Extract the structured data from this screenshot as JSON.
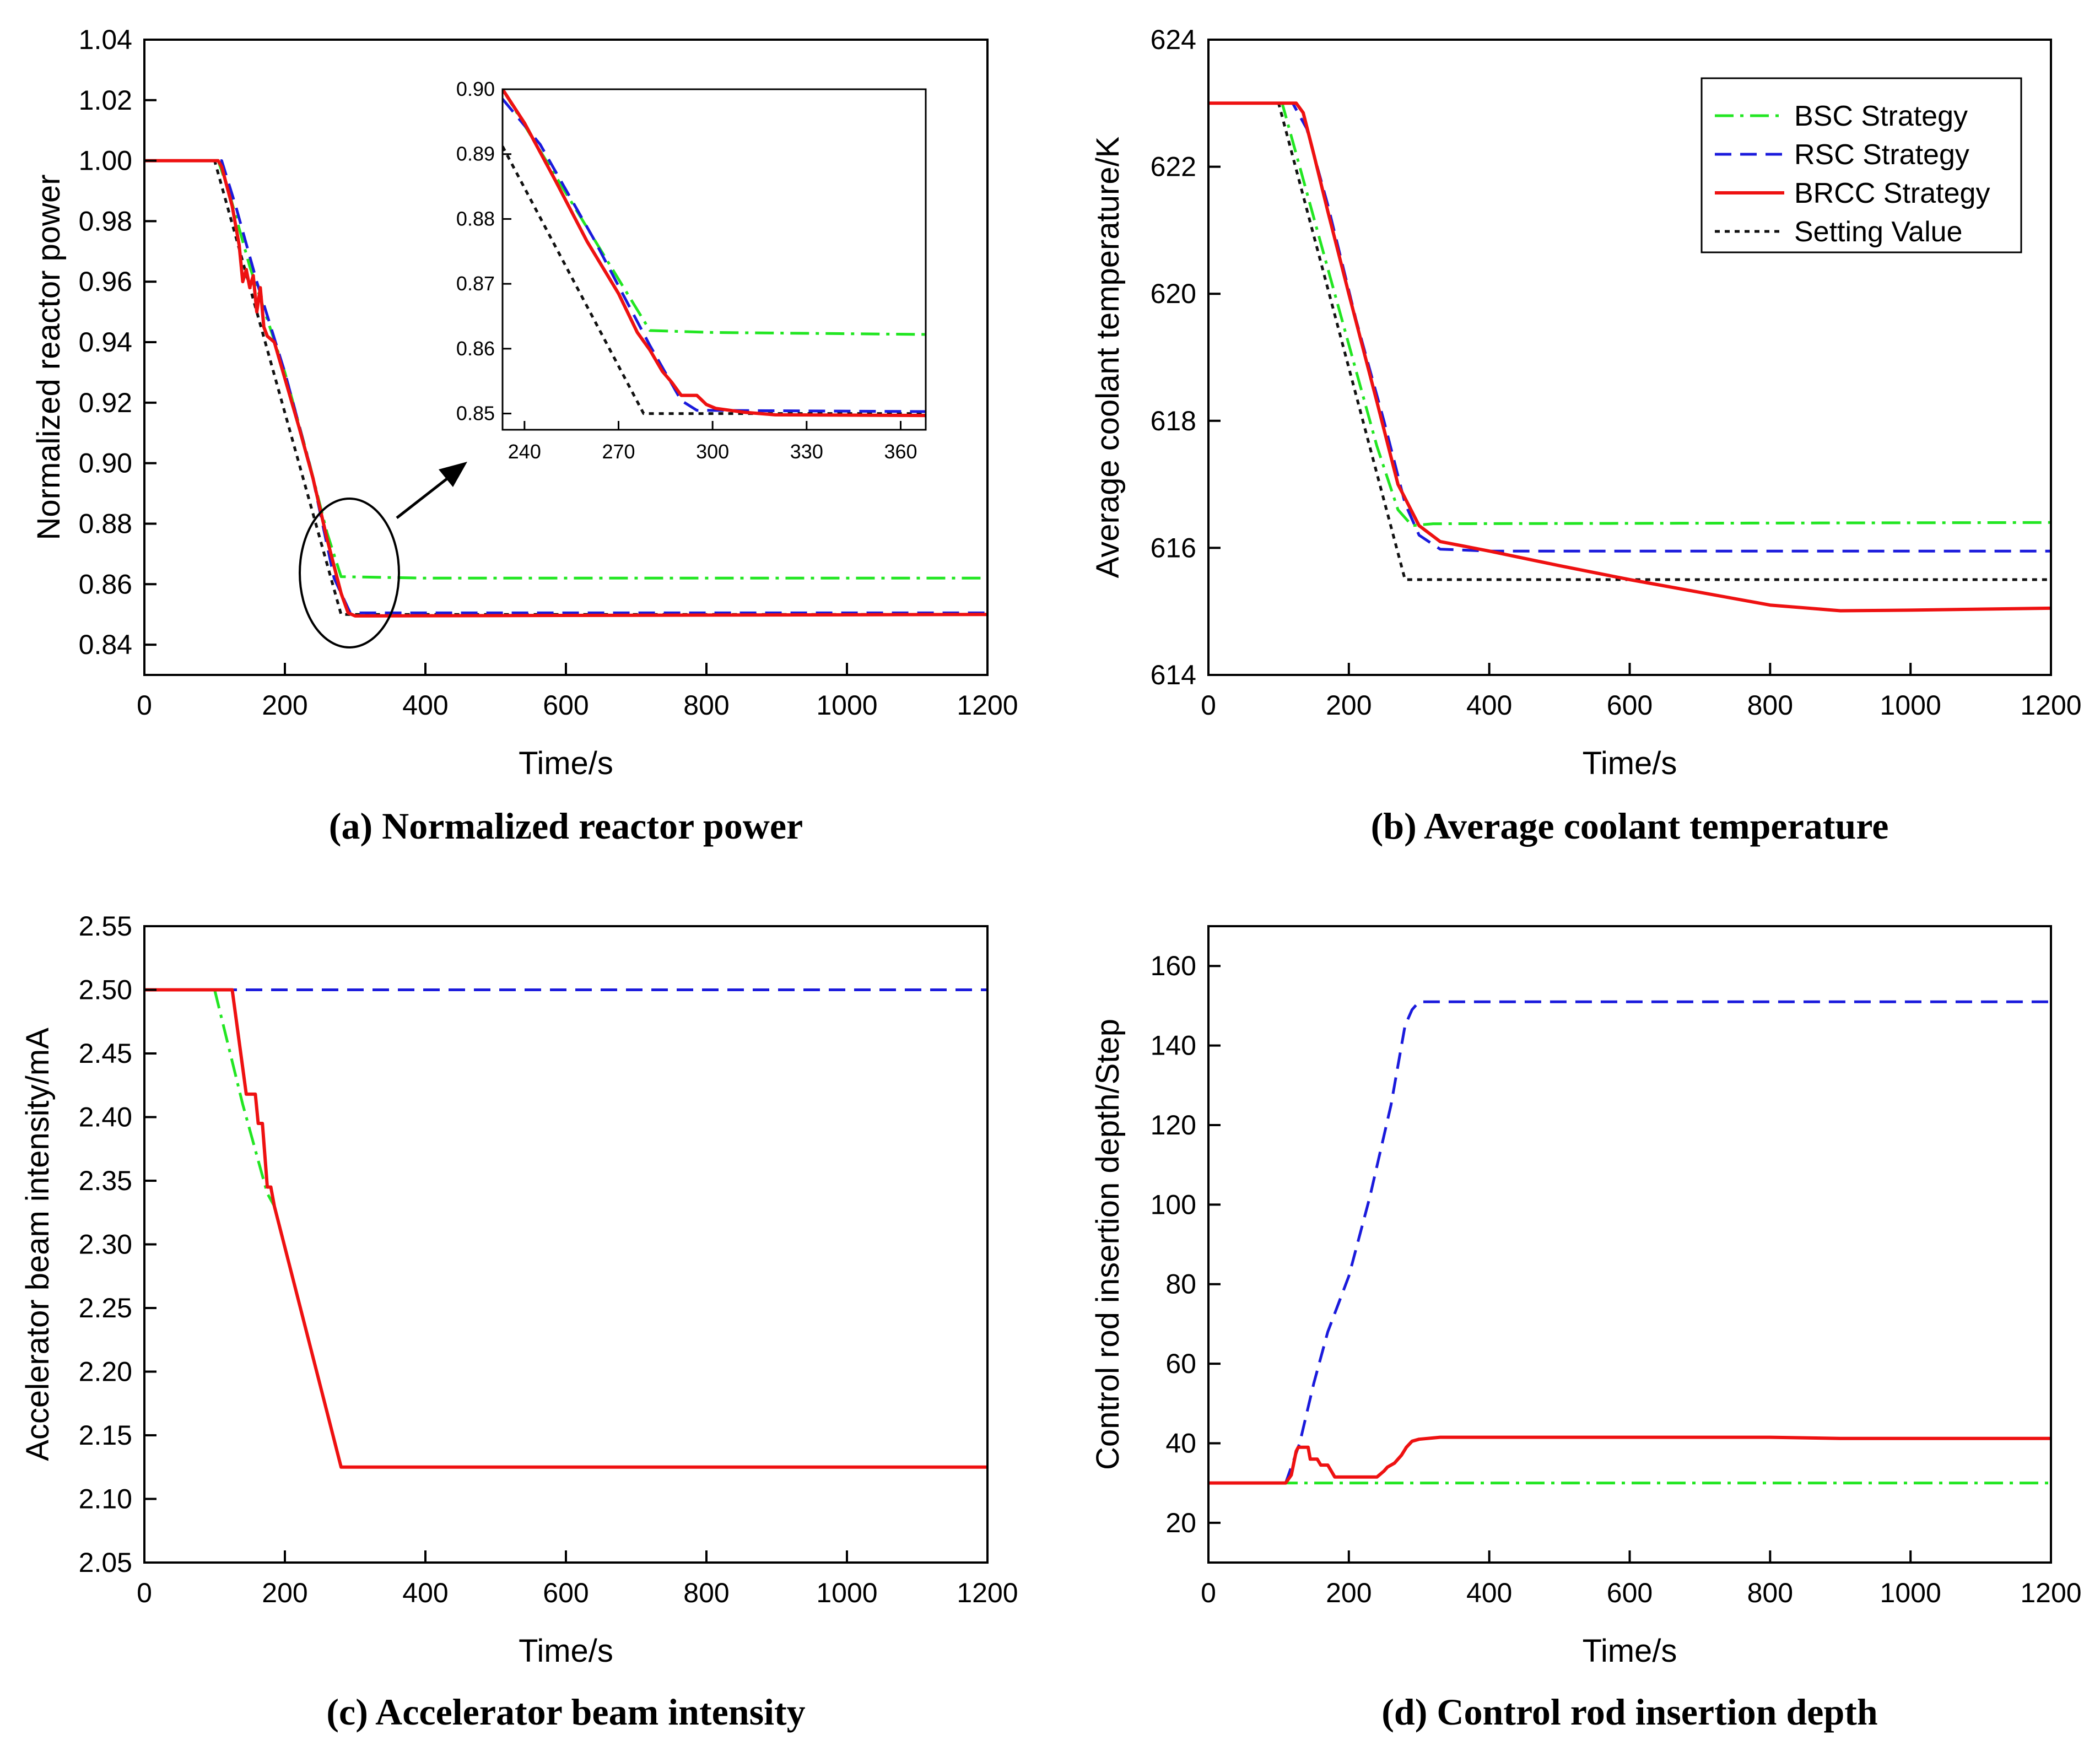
{
  "colors": {
    "BSC": "#22e622",
    "RSC": "#1a1adc",
    "BRCC": "#ee1111",
    "Setting": "#111111"
  },
  "legend": [
    {
      "key": "BSC",
      "label": "BSC Strategy",
      "dash": "dashdot"
    },
    {
      "key": "RSC",
      "label": "RSC Strategy",
      "dash": "dash"
    },
    {
      "key": "BRCC",
      "label": "BRCC Strategy",
      "dash": "solid"
    },
    {
      "key": "Setting",
      "label": "Setting Value",
      "dash": "dot"
    }
  ],
  "chart_data": [
    {
      "id": "a",
      "type": "line",
      "caption": "(a) Normalized reactor power",
      "xlabel": "Time/s",
      "ylabel": "Normalized reactor power",
      "xlim": [
        0,
        1200
      ],
      "ylim": [
        0.83,
        1.04
      ],
      "xticks": [
        0,
        200,
        400,
        600,
        800,
        1000,
        1200
      ],
      "xtick_labels": [
        "0",
        "200",
        "400",
        "600",
        "800",
        "1000",
        "1200"
      ],
      "yticks": [
        0.84,
        0.86,
        0.88,
        0.9,
        0.92,
        0.94,
        0.96,
        0.98,
        1.0,
        1.02,
        1.04
      ],
      "ytick_labels": [
        "0.84",
        "0.86",
        "0.88",
        "0.90",
        "0.92",
        "0.94",
        "0.96",
        "0.98",
        "1.00",
        "1.02",
        "1.04"
      ],
      "series": [
        {
          "key": "Setting",
          "name": "Setting Value",
          "points": [
            [
              0,
              1.0
            ],
            [
              100,
              1.0
            ],
            [
              280,
              0.85
            ],
            [
              1200,
              0.85
            ]
          ]
        },
        {
          "key": "BSC",
          "name": "BSC Strategy",
          "points": [
            [
              0,
              1.0
            ],
            [
              105,
              1.0
            ],
            [
              120,
              0.99
            ],
            [
              150,
              0.965
            ],
            [
              200,
              0.93
            ],
            [
              235,
              0.9
            ],
            [
              260,
              0.877
            ],
            [
              280,
              0.8625
            ],
            [
              400,
              0.862
            ],
            [
              1200,
              0.862
            ]
          ]
        },
        {
          "key": "RSC",
          "name": "RSC Strategy",
          "points": [
            [
              0,
              1.0
            ],
            [
              110,
              1.0
            ],
            [
              130,
              0.985
            ],
            [
              160,
              0.96
            ],
            [
              200,
              0.93
            ],
            [
              237,
              0.898
            ],
            [
              270,
              0.862
            ],
            [
              293,
              0.8505
            ],
            [
              1200,
              0.8505
            ]
          ]
        },
        {
          "key": "BRCC",
          "name": "BRCC Strategy",
          "points": [
            [
              0,
              1.0
            ],
            [
              105,
              1.0
            ],
            [
              110,
              0.998
            ],
            [
              125,
              0.985
            ],
            [
              135,
              0.972
            ],
            [
              140,
              0.96
            ],
            [
              145,
              0.964
            ],
            [
              150,
              0.958
            ],
            [
              155,
              0.962
            ],
            [
              160,
              0.95
            ],
            [
              165,
              0.958
            ],
            [
              170,
              0.945
            ],
            [
              175,
              0.942
            ],
            [
              185,
              0.94
            ],
            [
              200,
              0.928
            ],
            [
              220,
              0.912
            ],
            [
              240,
              0.895
            ],
            [
              260,
              0.875
            ],
            [
              280,
              0.857
            ],
            [
              290,
              0.8505
            ],
            [
              300,
              0.8495
            ],
            [
              1200,
              0.85
            ]
          ]
        }
      ],
      "inset": {
        "xlim": [
          233,
          368
        ],
        "ylim": [
          0.8475,
          0.9
        ],
        "xticks": [
          240,
          270,
          300,
          330,
          360
        ],
        "xtick_labels": [
          "240",
          "270",
          "300",
          "330",
          "360"
        ],
        "yticks": [
          0.85,
          0.86,
          0.87,
          0.88,
          0.89,
          0.9
        ],
        "ytick_labels": [
          "0.85",
          "0.86",
          "0.87",
          "0.88",
          "0.89",
          "0.90"
        ],
        "series": [
          {
            "key": "Setting",
            "points": [
              [
                233,
                0.8912
              ],
              [
                278,
                0.85
              ],
              [
                368,
                0.85
              ]
            ]
          },
          {
            "key": "BSC",
            "points": [
              [
                233,
                0.9
              ],
              [
                280,
                0.8628
              ],
              [
                300,
                0.8625
              ],
              [
                368,
                0.8622
              ]
            ]
          },
          {
            "key": "RSC",
            "points": [
              [
                233,
                0.8985
              ],
              [
                245,
                0.8915
              ],
              [
                262,
                0.877
              ],
              [
                280,
                0.8605
              ],
              [
                290,
                0.852
              ],
              [
                295,
                0.8505
              ],
              [
                368,
                0.8503
              ]
            ]
          },
          {
            "key": "BRCC",
            "points": [
              [
                233,
                0.9
              ],
              [
                240,
                0.8948
              ],
              [
                250,
                0.8858
              ],
              [
                260,
                0.8765
              ],
              [
                270,
                0.8685
              ],
              [
                276,
                0.8625
              ],
              [
                280,
                0.8598
              ],
              [
                284,
                0.8565
              ],
              [
                287,
                0.8548
              ],
              [
                290,
                0.8528
              ],
              [
                295,
                0.8528
              ],
              [
                298,
                0.8514
              ],
              [
                301,
                0.8508
              ],
              [
                310,
                0.8502
              ],
              [
                320,
                0.8498
              ],
              [
                368,
                0.8497
              ]
            ]
          }
        ]
      }
    },
    {
      "id": "b",
      "type": "line",
      "caption": "(b) Average coolant temperature",
      "xlabel": "Time/s",
      "ylabel": "Average coolant temperature/K",
      "xlim": [
        0,
        1200
      ],
      "ylim": [
        614,
        624
      ],
      "xticks": [
        0,
        200,
        400,
        600,
        800,
        1000,
        1200
      ],
      "xtick_labels": [
        "0",
        "200",
        "400",
        "600",
        "800",
        "1000",
        "1200"
      ],
      "yticks": [
        614,
        616,
        618,
        620,
        622,
        624
      ],
      "ytick_labels": [
        "614",
        "616",
        "618",
        "620",
        "622",
        "624"
      ],
      "series": [
        {
          "key": "Setting",
          "name": "Setting Value",
          "points": [
            [
              0,
              623.0
            ],
            [
              100,
              623.0
            ],
            [
              280,
              615.5
            ],
            [
              1200,
              615.5
            ]
          ]
        },
        {
          "key": "BSC",
          "name": "BSC Strategy",
          "points": [
            [
              0,
              623.0
            ],
            [
              105,
              623.0
            ],
            [
              125,
              622.2
            ],
            [
              165,
              620.6
            ],
            [
              200,
              619.2
            ],
            [
              240,
              617.6
            ],
            [
              270,
              616.6
            ],
            [
              290,
              616.35
            ],
            [
              320,
              616.38
            ],
            [
              1200,
              616.4
            ]
          ]
        },
        {
          "key": "RSC",
          "name": "RSC Strategy",
          "points": [
            [
              0,
              623.0
            ],
            [
              120,
              623.0
            ],
            [
              140,
              622.6
            ],
            [
              170,
              621.4
            ],
            [
              210,
              619.6
            ],
            [
              250,
              618.0
            ],
            [
              280,
              616.7
            ],
            [
              300,
              616.2
            ],
            [
              330,
              615.98
            ],
            [
              400,
              615.95
            ],
            [
              1200,
              615.95
            ]
          ]
        },
        {
          "key": "BRCC",
          "name": "BRCC Strategy",
          "points": [
            [
              0,
              623.0
            ],
            [
              110,
              623.0
            ],
            [
              125,
              623.0
            ],
            [
              135,
              622.85
            ],
            [
              150,
              622.2
            ],
            [
              170,
              621.3
            ],
            [
              200,
              620.0
            ],
            [
              240,
              618.3
            ],
            [
              270,
              617.0
            ],
            [
              300,
              616.35
            ],
            [
              330,
              616.1
            ],
            [
              400,
              615.95
            ],
            [
              500,
              615.72
            ],
            [
              600,
              615.5
            ],
            [
              700,
              615.3
            ],
            [
              800,
              615.1
            ],
            [
              900,
              615.01
            ],
            [
              1000,
              615.02
            ],
            [
              1200,
              615.05
            ]
          ]
        }
      ]
    },
    {
      "id": "c",
      "type": "line",
      "caption": "(c) Accelerator beam intensity",
      "xlabel": "Time/s",
      "ylabel": "Accelerator beam intensity/mA",
      "xlim": [
        0,
        1200
      ],
      "ylim": [
        2.05,
        2.55
      ],
      "xticks": [
        0,
        200,
        400,
        600,
        800,
        1000,
        1200
      ],
      "xtick_labels": [
        "0",
        "200",
        "400",
        "600",
        "800",
        "1000",
        "1200"
      ],
      "yticks": [
        2.05,
        2.1,
        2.15,
        2.2,
        2.25,
        2.3,
        2.35,
        2.4,
        2.45,
        2.5,
        2.55
      ],
      "ytick_labels": [
        "2.05",
        "2.10",
        "2.15",
        "2.20",
        "2.25",
        "2.30",
        "2.35",
        "2.40",
        "2.45",
        "2.50",
        "2.55"
      ],
      "series": [
        {
          "key": "RSC",
          "name": "RSC Strategy",
          "points": [
            [
              0,
              2.5
            ],
            [
              1200,
              2.5
            ]
          ]
        },
        {
          "key": "BSC",
          "name": "BSC Strategy",
          "points": [
            [
              0,
              2.5
            ],
            [
              100,
              2.5
            ],
            [
              140,
              2.41
            ],
            [
              175,
              2.34
            ],
            [
              185,
              2.33
            ],
            [
              280,
              2.125
            ],
            [
              1200,
              2.125
            ]
          ]
        },
        {
          "key": "BRCC",
          "name": "BRCC Strategy",
          "points": [
            [
              0,
              2.5
            ],
            [
              125,
              2.5
            ],
            [
              145,
              2.418
            ],
            [
              158,
              2.418
            ],
            [
              162,
              2.395
            ],
            [
              168,
              2.395
            ],
            [
              175,
              2.345
            ],
            [
              180,
              2.345
            ],
            [
              185,
              2.33
            ],
            [
              280,
              2.125
            ],
            [
              1200,
              2.125
            ]
          ]
        }
      ]
    },
    {
      "id": "d",
      "type": "line",
      "caption": "(d) Control rod insertion depth",
      "xlabel": "Time/s",
      "ylabel": "Control rod insertion depth/Step",
      "xlim": [
        0,
        1200
      ],
      "ylim": [
        10,
        170
      ],
      "xticks": [
        0,
        200,
        400,
        600,
        800,
        1000,
        1200
      ],
      "xtick_labels": [
        "0",
        "200",
        "400",
        "600",
        "800",
        "1000",
        "1200"
      ],
      "yticks": [
        20,
        40,
        60,
        80,
        100,
        120,
        140,
        160
      ],
      "ytick_labels": [
        "20",
        "40",
        "60",
        "80",
        "100",
        "120",
        "140",
        "160"
      ],
      "series": [
        {
          "key": "BSC",
          "name": "BSC Strategy",
          "points": [
            [
              0,
              30
            ],
            [
              1200,
              30
            ]
          ]
        },
        {
          "key": "RSC",
          "name": "RSC Strategy",
          "points": [
            [
              0,
              30
            ],
            [
              110,
              30
            ],
            [
              130,
              40
            ],
            [
              150,
              55
            ],
            [
              170,
              68
            ],
            [
              200,
              82
            ],
            [
              230,
              102
            ],
            [
              260,
              125
            ],
            [
              280,
              145
            ],
            [
              290,
              149
            ],
            [
              300,
              151
            ],
            [
              1200,
              151
            ]
          ]
        },
        {
          "key": "BRCC",
          "name": "BRCC Strategy",
          "points": [
            [
              0,
              30
            ],
            [
              110,
              30
            ],
            [
              118,
              32
            ],
            [
              125,
              38
            ],
            [
              128,
              39
            ],
            [
              142,
              39
            ],
            [
              145,
              36
            ],
            [
              155,
              36
            ],
            [
              160,
              34.5
            ],
            [
              170,
              34.5
            ],
            [
              175,
              33
            ],
            [
              180,
              31.5
            ],
            [
              240,
              31.5
            ],
            [
              250,
              33
            ],
            [
              255,
              34
            ],
            [
              265,
              35
            ],
            [
              270,
              36
            ],
            [
              275,
              37
            ],
            [
              282,
              39
            ],
            [
              290,
              40.5
            ],
            [
              300,
              41
            ],
            [
              330,
              41.5
            ],
            [
              800,
              41.5
            ],
            [
              900,
              41.2
            ],
            [
              1200,
              41.2
            ]
          ]
        }
      ]
    }
  ]
}
